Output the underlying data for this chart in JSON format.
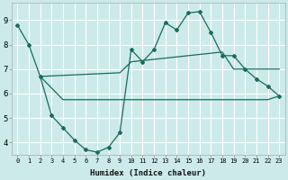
{
  "xlabel": "Humidex (Indice chaleur)",
  "bg_color": "#cceaea",
  "grid_color": "#ffffff",
  "line_color": "#1a6b5a",
  "xlim": [
    -0.5,
    23.5
  ],
  "ylim": [
    3.5,
    9.7
  ],
  "xticks": [
    0,
    1,
    2,
    3,
    4,
    5,
    6,
    7,
    8,
    9,
    10,
    11,
    12,
    13,
    14,
    15,
    16,
    17,
    18,
    19,
    20,
    21,
    22,
    23
  ],
  "yticks": [
    4,
    5,
    6,
    7,
    8,
    9
  ],
  "line1_x": [
    0,
    1,
    2,
    3,
    4,
    5,
    6,
    7,
    8,
    9,
    10,
    11,
    12,
    13,
    14,
    15,
    16,
    17,
    18,
    19,
    20,
    21,
    22,
    23
  ],
  "line1_y": [
    8.8,
    8.0,
    6.7,
    5.1,
    4.6,
    4.1,
    3.7,
    3.6,
    3.8,
    4.4,
    7.8,
    7.3,
    7.8,
    8.9,
    8.6,
    9.3,
    9.35,
    8.5,
    7.55,
    7.55,
    7.0,
    6.6,
    6.3,
    5.9
  ],
  "line2_x": [
    2,
    4,
    9,
    10,
    11,
    12,
    13,
    14,
    15,
    16,
    17,
    18,
    19,
    20,
    21,
    22,
    23
  ],
  "line2_y": [
    6.7,
    5.75,
    5.75,
    5.75,
    5.75,
    5.75,
    5.75,
    5.75,
    5.75,
    5.75,
    5.75,
    5.75,
    5.75,
    5.75,
    5.75,
    5.75,
    5.9
  ],
  "line3_x": [
    2,
    9,
    10,
    11,
    12,
    13,
    14,
    15,
    16,
    17,
    18,
    19,
    20,
    21,
    22,
    23
  ],
  "line3_y": [
    6.7,
    6.85,
    7.3,
    7.35,
    7.4,
    7.45,
    7.5,
    7.55,
    7.6,
    7.65,
    7.7,
    7.0,
    7.0,
    7.0,
    7.0,
    7.0
  ]
}
